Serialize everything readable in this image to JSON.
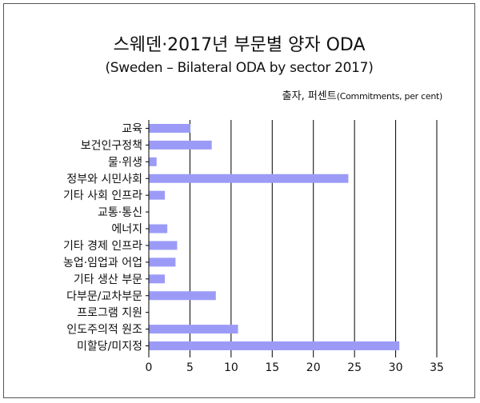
{
  "title": "스웨덴·2017년 부문별 양자 ODA",
  "subtitle": "(Sweden – Bilateral ODA by sector 2017)",
  "unit_ko": "출자, 퍼센트",
  "unit_en": "(Commitments, per cent)",
  "colors": {
    "bar": "#9b9bf7",
    "grid": "#000000",
    "axis": "#000000"
  },
  "chart_data": {
    "type": "bar",
    "orientation": "horizontal",
    "title": "스웨덴·2017년 부문별 양자 ODA",
    "subtitle": "(Sweden – Bilateral ODA by sector 2017)",
    "unit": "출자, 퍼센트 (Commitments, per cent)",
    "categories": [
      "교육",
      "보건인구정책",
      "물·위생",
      "정부와 시민사회",
      "기타 사회 인프라",
      "교통·통신",
      "에너지",
      "기타 경제 인프라",
      "농업·임업과 어업",
      "기타 생산 부문",
      "다부문/교차부문",
      "프로그램 지원",
      "인도주의적 원조",
      "미할당/미지정"
    ],
    "values": [
      5.0,
      7.6,
      0.9,
      24.2,
      1.9,
      0.0,
      2.2,
      3.4,
      3.2,
      1.9,
      8.1,
      0.0,
      10.8,
      30.4
    ],
    "xlim": [
      0,
      35
    ],
    "xticks": [
      0,
      5,
      10,
      15,
      20,
      25,
      30,
      35
    ],
    "grid": "vertical",
    "legend": "none"
  }
}
